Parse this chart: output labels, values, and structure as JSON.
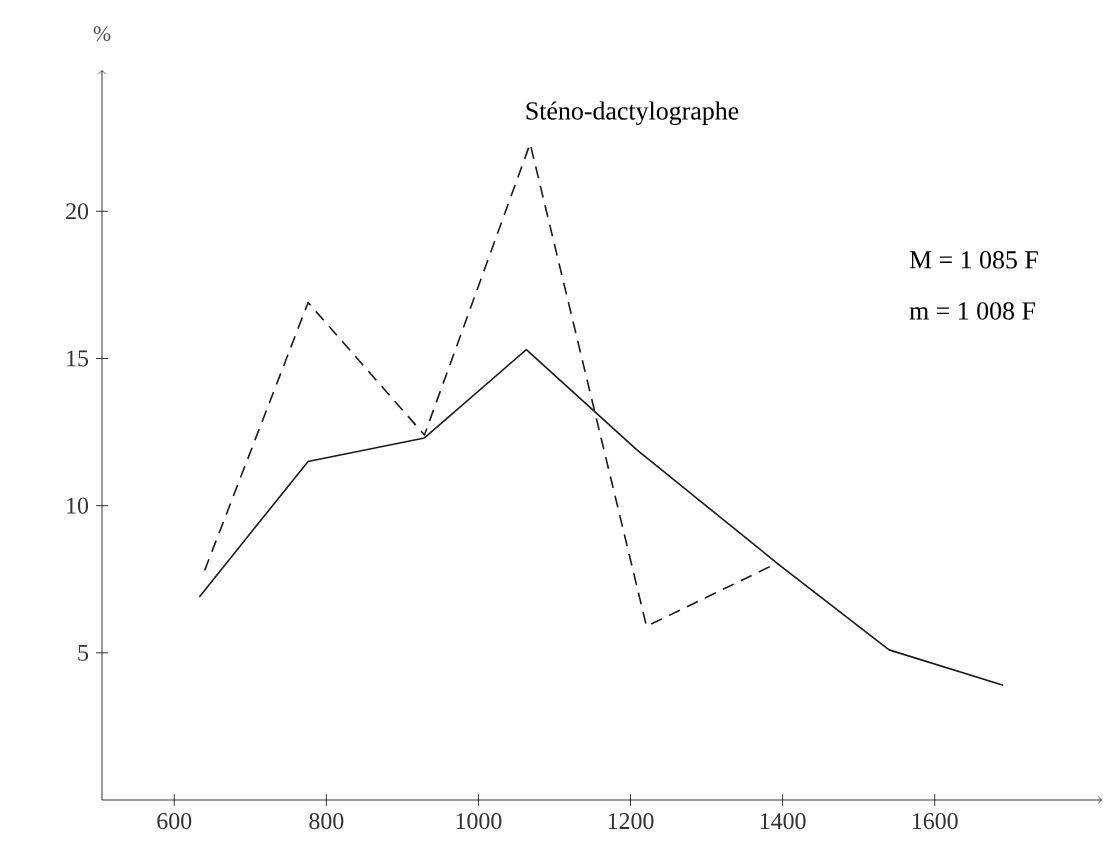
{
  "chart_data": {
    "type": "line",
    "title": "Sténo-dactylographe",
    "ylabel": "%",
    "annotations": [
      "M  =  1 085 F",
      "m  =  1 008 F"
    ],
    "xlim": [
      505,
      1820
    ],
    "ylim": [
      0,
      24.8
    ],
    "xticks": [
      600,
      800,
      1000,
      1200,
      1400,
      1600
    ],
    "yticks": [
      5,
      10,
      15,
      20
    ],
    "grid": false,
    "marker": "none",
    "series": [
      {
        "color": "#1a1a1a",
        "line_style": "solid",
        "x": [
          633,
          776,
          929,
          1063,
          1208,
          1395,
          1540,
          1690
        ],
        "values": [
          6.9,
          11.5,
          12.3,
          15.3,
          11.9,
          8.0,
          5.1,
          3.9
        ]
      },
      {
        "color": "#1a1a1a",
        "line_style": "dashed",
        "x": [
          640,
          776,
          929,
          1068,
          1221,
          1389
        ],
        "values": [
          7.8,
          16.9,
          12.4,
          22.3,
          5.9,
          8.0
        ]
      }
    ]
  }
}
